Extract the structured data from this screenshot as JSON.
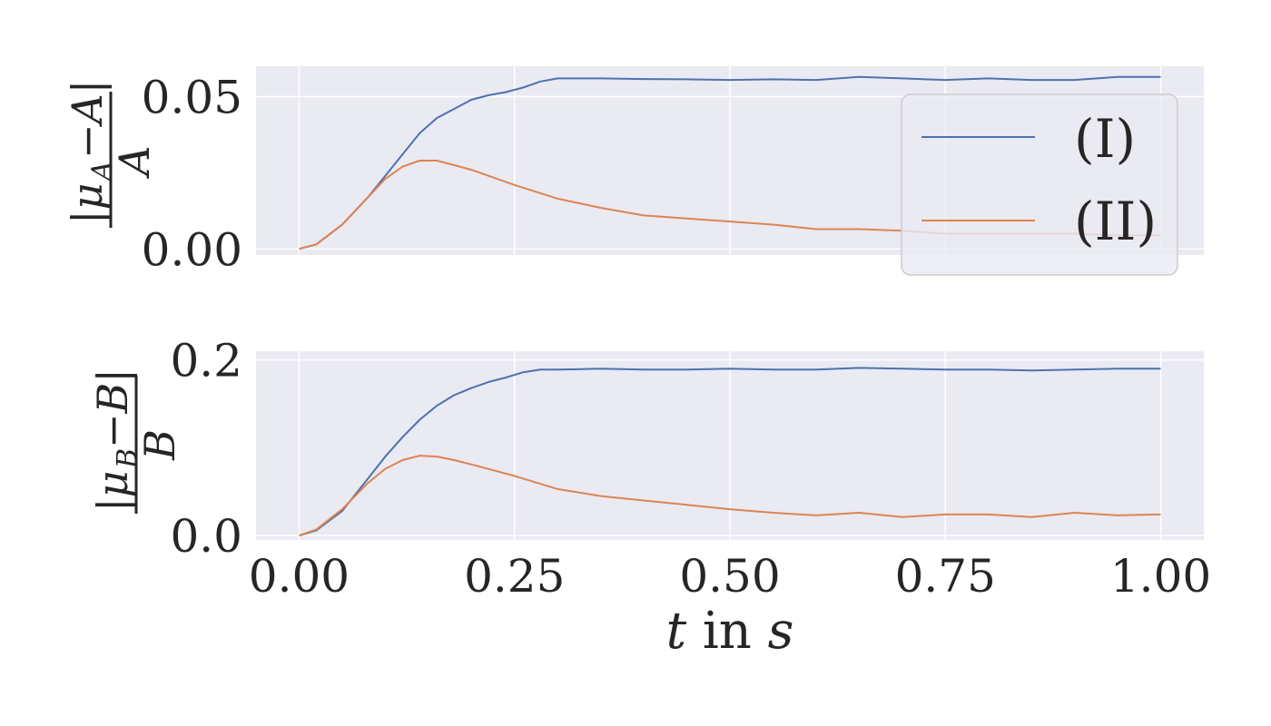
{
  "colors": {
    "axes_bg": "#EAEAF2",
    "grid": "#FFFFFF",
    "series_I": "#4C72B0",
    "series_II": "#DD8452",
    "text": "#262626"
  },
  "chart_data": [
    {
      "type": "line",
      "id": "top",
      "ylabel": "|μ_A − A| / A",
      "ylabel_parts": {
        "num_mu": "|μ",
        "num_sub": "A",
        "num_rest": "−A|",
        "den": "A"
      },
      "xlim": [
        -0.05,
        1.05
      ],
      "ylim": [
        -0.002,
        0.06
      ],
      "yticks": [
        0.0,
        0.05
      ],
      "ytick_labels": [
        "0.00",
        "0.05"
      ],
      "xticks": [
        0.0,
        0.25,
        0.5,
        0.75,
        1.0
      ],
      "grid": true,
      "legend": {
        "placement": "upper right",
        "entries": [
          "(I)",
          "(II)"
        ]
      },
      "series": [
        {
          "name": "(I)",
          "x": [
            0.0,
            0.02,
            0.05,
            0.08,
            0.1,
            0.12,
            0.14,
            0.16,
            0.18,
            0.2,
            0.22,
            0.24,
            0.26,
            0.28,
            0.3,
            0.35,
            0.4,
            0.45,
            0.5,
            0.55,
            0.6,
            0.65,
            0.7,
            0.75,
            0.8,
            0.85,
            0.9,
            0.95,
            1.0
          ],
          "y": [
            0.0,
            0.0015,
            0.008,
            0.017,
            0.024,
            0.031,
            0.038,
            0.043,
            0.046,
            0.049,
            0.0505,
            0.0515,
            0.053,
            0.055,
            0.056,
            0.056,
            0.0558,
            0.0557,
            0.0555,
            0.0557,
            0.0555,
            0.0565,
            0.056,
            0.0555,
            0.056,
            0.0555,
            0.0555,
            0.0565,
            0.0565
          ]
        },
        {
          "name": "(II)",
          "x": [
            0.0,
            0.02,
            0.05,
            0.08,
            0.1,
            0.12,
            0.14,
            0.16,
            0.18,
            0.2,
            0.25,
            0.3,
            0.35,
            0.4,
            0.45,
            0.5,
            0.55,
            0.6,
            0.65,
            0.7,
            0.75,
            0.8,
            0.85,
            0.9,
            0.95,
            1.0
          ],
          "y": [
            0.0,
            0.0015,
            0.008,
            0.017,
            0.023,
            0.027,
            0.029,
            0.029,
            0.0275,
            0.026,
            0.021,
            0.0165,
            0.0135,
            0.011,
            0.01,
            0.009,
            0.008,
            0.0065,
            0.0065,
            0.006,
            0.005,
            0.005,
            0.005,
            0.005,
            0.0045,
            0.0045
          ]
        }
      ]
    },
    {
      "type": "line",
      "id": "bottom",
      "ylabel": "|μ_B − B| / B",
      "ylabel_parts": {
        "num_mu": "|μ",
        "num_sub": "B",
        "num_rest": "−B|",
        "den": "B"
      },
      "xlabel": "t in s",
      "xlabel_parts": {
        "t": "t",
        "mid": " in ",
        "s": "s"
      },
      "xlim": [
        -0.05,
        1.05
      ],
      "ylim": [
        -0.005,
        0.21
      ],
      "yticks": [
        0.0,
        0.2
      ],
      "ytick_labels": [
        "0.0",
        "0.2"
      ],
      "xticks": [
        0.0,
        0.25,
        0.5,
        0.75,
        1.0
      ],
      "xtick_labels": [
        "0.00",
        "0.25",
        "0.50",
        "0.75",
        "1.00"
      ],
      "grid": true,
      "series": [
        {
          "name": "(I)",
          "x": [
            0.0,
            0.02,
            0.05,
            0.08,
            0.1,
            0.12,
            0.14,
            0.16,
            0.18,
            0.2,
            0.22,
            0.24,
            0.26,
            0.28,
            0.3,
            0.35,
            0.4,
            0.45,
            0.5,
            0.55,
            0.6,
            0.65,
            0.7,
            0.75,
            0.8,
            0.85,
            0.9,
            0.95,
            1.0
          ],
          "y": [
            0.0,
            0.006,
            0.028,
            0.065,
            0.09,
            0.112,
            0.132,
            0.148,
            0.16,
            0.168,
            0.175,
            0.18,
            0.186,
            0.189,
            0.189,
            0.19,
            0.189,
            0.189,
            0.19,
            0.189,
            0.189,
            0.191,
            0.19,
            0.189,
            0.189,
            0.188,
            0.189,
            0.19,
            0.19
          ]
        },
        {
          "name": "(II)",
          "x": [
            0.0,
            0.02,
            0.05,
            0.08,
            0.1,
            0.12,
            0.14,
            0.16,
            0.18,
            0.2,
            0.25,
            0.3,
            0.35,
            0.4,
            0.45,
            0.5,
            0.55,
            0.6,
            0.65,
            0.7,
            0.75,
            0.8,
            0.85,
            0.9,
            0.95,
            1.0
          ],
          "y": [
            0.0,
            0.007,
            0.03,
            0.06,
            0.076,
            0.086,
            0.091,
            0.09,
            0.086,
            0.081,
            0.068,
            0.053,
            0.045,
            0.04,
            0.035,
            0.03,
            0.026,
            0.023,
            0.026,
            0.021,
            0.024,
            0.024,
            0.021,
            0.026,
            0.023,
            0.024
          ]
        }
      ]
    }
  ]
}
